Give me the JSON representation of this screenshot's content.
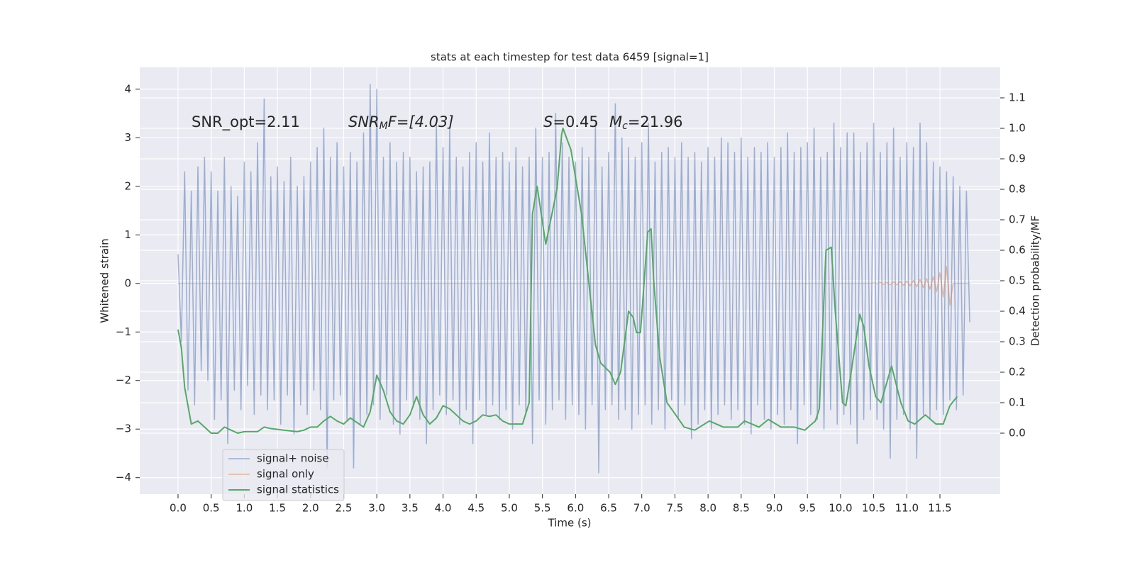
{
  "chart_data": {
    "type": "line",
    "title": "stats at each timestep for test data 6459 [signal=1]",
    "xlabel": "Time (s)",
    "ylabel": "Whitened strain",
    "y2label": "Detection probability/MF",
    "annotations": [
      {
        "base": "SNR_opt=2.11"
      },
      {
        "base": "SNR",
        "sub": "M",
        "rest": "F=[4.03]"
      },
      {
        "base": "S",
        "rest": "=0.45"
      },
      {
        "base": "M",
        "sub": "c",
        "rest": "=21.96"
      }
    ],
    "grid": true,
    "legend": "lower left",
    "xlim": [
      -0.578,
      12.41
    ],
    "ylim": [
      -4.34,
      4.45
    ],
    "y2lim": [
      -0.2,
      1.2
    ],
    "xticks": [
      {
        "value": 0,
        "label": "0.0"
      },
      0.5,
      {
        "value": 1,
        "label": "1.0"
      },
      1.5,
      {
        "value": 2,
        "label": "2.0"
      },
      2.5,
      {
        "value": 3,
        "label": "3.0"
      },
      3.5,
      {
        "value": 4,
        "label": "4.0"
      },
      4.5,
      {
        "value": 5,
        "label": "5.0"
      },
      5.5,
      {
        "value": 6,
        "label": "6.0"
      },
      6.5,
      {
        "value": 7,
        "label": "7.0"
      },
      7.5,
      {
        "value": 8,
        "label": "8.0"
      },
      8.5,
      {
        "value": 9,
        "label": "9.0"
      },
      9.5,
      {
        "value": 10,
        "label": "10.0"
      },
      10.5,
      {
        "value": 11,
        "label": "11.0"
      },
      11.5
    ],
    "yticks": [
      {
        "value": -4,
        "label": "−4"
      },
      {
        "value": -3,
        "label": "−3"
      },
      {
        "value": -2,
        "label": "−2"
      },
      {
        "value": -1,
        "label": "−1"
      },
      0,
      1,
      2,
      3,
      4
    ],
    "y2ticks": [
      {
        "value": 0,
        "label": "0.0"
      },
      0.1,
      0.2,
      0.3,
      0.4,
      0.5,
      0.6,
      0.7,
      0.8,
      0.9,
      {
        "value": 1,
        "label": "1.0"
      },
      1.1
    ],
    "x": [
      0,
      0.05,
      0.1,
      0.15,
      0.2,
      0.25,
      0.3,
      0.35,
      0.4,
      0.45,
      0.5,
      0.55,
      0.6,
      0.65,
      0.7,
      0.75,
      0.8,
      0.85,
      0.9,
      0.95,
      1,
      1.05,
      1.1,
      1.15,
      1.2,
      1.25,
      1.3,
      1.35,
      1.4,
      1.45,
      1.5,
      1.55,
      1.6,
      1.65,
      1.7,
      1.75,
      1.8,
      1.85,
      1.9,
      1.95,
      2,
      2.05,
      2.1,
      2.15,
      2.2,
      2.25,
      2.3,
      2.35,
      2.4,
      2.45,
      2.5,
      2.55,
      2.6,
      2.65,
      2.7,
      2.75,
      2.8,
      2.85,
      2.9,
      2.95,
      3,
      3.05,
      3.1,
      3.15,
      3.2,
      3.25,
      3.3,
      3.35,
      3.4,
      3.45,
      3.5,
      3.55,
      3.6,
      3.65,
      3.7,
      3.75,
      3.8,
      3.85,
      3.9,
      3.95,
      4,
      4.05,
      4.1,
      4.15,
      4.2,
      4.25,
      4.3,
      4.35,
      4.4,
      4.45,
      4.5,
      4.55,
      4.6,
      4.65,
      4.7,
      4.75,
      4.8,
      4.85,
      4.9,
      4.95,
      5,
      5.05,
      5.1,
      5.15,
      5.2,
      5.25,
      5.3,
      5.35,
      5.4,
      5.45,
      5.5,
      5.55,
      5.6,
      5.65,
      5.7,
      5.75,
      5.8,
      5.85,
      5.9,
      5.95,
      6,
      6.05,
      6.1,
      6.15,
      6.2,
      6.25,
      6.3,
      6.35,
      6.4,
      6.45,
      6.5,
      6.55,
      6.6,
      6.65,
      6.7,
      6.75,
      6.8,
      6.85,
      6.9,
      6.95,
      7,
      7.05,
      7.1,
      7.15,
      7.2,
      7.25,
      7.3,
      7.35,
      7.4,
      7.45,
      7.5,
      7.55,
      7.6,
      7.65,
      7.7,
      7.75,
      7.8,
      7.85,
      7.9,
      7.95,
      8,
      8.05,
      8.1,
      8.15,
      8.2,
      8.25,
      8.3,
      8.35,
      8.4,
      8.45,
      8.5,
      8.55,
      8.6,
      8.65,
      8.7,
      8.75,
      8.8,
      8.85,
      8.9,
      8.95,
      9,
      9.05,
      9.1,
      9.15,
      9.2,
      9.25,
      9.3,
      9.35,
      9.4,
      9.45,
      9.5,
      9.55,
      9.6,
      9.65,
      9.7,
      9.75,
      9.8,
      9.85,
      9.9,
      9.95,
      10,
      10.05,
      10.1,
      10.15,
      10.2,
      10.25,
      10.3,
      10.35,
      10.4,
      10.45,
      10.5,
      10.55,
      10.6,
      10.65,
      10.7,
      10.75,
      10.8,
      10.85,
      10.9,
      10.95,
      11,
      11.05,
      11.1,
      11.15,
      11.2,
      11.25,
      11.3,
      11.35,
      11.4,
      11.45,
      11.5,
      11.55,
      11.6,
      11.65,
      11.7,
      11.75,
      11.8,
      11.85,
      11.9,
      11.95
    ],
    "series": [
      {
        "name": "signal+ noise",
        "color": "#4c72b0",
        "values": [
          0.6,
          -1.2,
          2.3,
          -2.2,
          1.9,
          -2.5,
          2.4,
          -1.8,
          2.6,
          -2.0,
          2.3,
          -2.8,
          1.9,
          -2.4,
          2.6,
          -3.3,
          2.0,
          -2.2,
          1.8,
          -2.6,
          2.5,
          -2.1,
          2.3,
          -2.7,
          2.9,
          -2.3,
          3.8,
          -2.6,
          2.2,
          -2.4,
          2.4,
          -2.9,
          2.1,
          -2.3,
          2.6,
          -3.1,
          2.0,
          -2.5,
          2.2,
          -2.7,
          2.5,
          -2.2,
          2.8,
          -2.6,
          3.2,
          -3.8,
          2.6,
          -2.4,
          2.9,
          -2.3,
          2.4,
          -2.8,
          2.7,
          -3.8,
          2.5,
          -2.9,
          3.1,
          -2.7,
          4.1,
          -2.5,
          4.0,
          -2.8,
          2.6,
          -2.3,
          2.9,
          -2.9,
          2.5,
          -3.1,
          2.7,
          -2.4,
          2.6,
          -2.5,
          2.3,
          -2.8,
          2.4,
          -3.3,
          2.5,
          -2.6,
          3.3,
          -2.3,
          2.8,
          -2.7,
          3.2,
          -2.4,
          2.6,
          -2.9,
          2.4,
          -2.6,
          2.7,
          -3.3,
          2.9,
          -2.4,
          2.5,
          -2.7,
          3.1,
          -2.5,
          2.6,
          -2.8,
          2.7,
          -2.6,
          2.5,
          -3.0,
          2.8,
          -2.5,
          2.4,
          -2.7,
          2.6,
          -3.3,
          3.2,
          -2.4,
          2.6,
          -2.9,
          2.7,
          -2.6,
          3.5,
          -2.4,
          2.9,
          -2.8,
          2.6,
          -2.5,
          2.5,
          -2.7,
          2.8,
          -3.0,
          2.6,
          -2.5,
          3.3,
          -3.9,
          2.4,
          -2.6,
          2.7,
          -2.5,
          3.7,
          -2.8,
          3.0,
          -2.6,
          2.8,
          -3.0,
          2.6,
          -2.7,
          2.9,
          -2.5,
          3.3,
          -2.9,
          2.5,
          -2.6,
          2.7,
          -3.0,
          2.8,
          -2.4,
          2.6,
          -2.8,
          2.9,
          -2.5,
          2.6,
          -3.2,
          2.7,
          -2.9,
          2.5,
          -2.6,
          2.8,
          -3.0,
          2.6,
          -2.7,
          3.0,
          -2.5,
          2.9,
          -2.8,
          2.7,
          -2.6,
          3.0,
          -2.9,
          2.6,
          -3.1,
          2.8,
          -2.5,
          2.7,
          -2.8,
          2.9,
          -3.0,
          2.6,
          -2.7,
          2.8,
          -2.9,
          3.1,
          -2.6,
          2.7,
          -3.3,
          2.8,
          -2.5,
          2.9,
          -2.7,
          3.2,
          -2.8,
          2.6,
          -3.0,
          2.7,
          -2.6,
          3.3,
          -2.9,
          2.8,
          -2.7,
          3.1,
          -2.9,
          3.1,
          -3.3,
          2.7,
          -2.8,
          2.9,
          -2.6,
          3.3,
          -2.8,
          2.7,
          -3.0,
          2.9,
          -3.6,
          3.2,
          -2.8,
          2.6,
          -2.7,
          2.9,
          -3.0,
          2.8,
          -3.6,
          3.3,
          -2.7,
          2.9,
          -2.8,
          2.5,
          -2.6,
          2.4,
          -2.7,
          2.3,
          -2.4,
          2.2,
          -2.6,
          2.0,
          -2.3,
          1.9,
          -0.8
        ]
      },
      {
        "name": "signal only",
        "color": "#dd8452",
        "values": [
          0,
          0,
          0,
          0,
          0,
          0,
          0,
          0,
          0,
          0,
          0,
          0,
          0,
          0,
          0,
          0,
          0,
          0,
          0,
          0,
          0,
          0,
          0,
          0,
          0,
          0,
          0,
          0,
          0,
          0,
          0,
          0,
          0,
          0,
          0,
          0,
          0,
          0,
          0,
          0,
          0,
          0,
          0,
          0,
          0,
          0,
          0,
          0,
          0,
          0,
          0,
          0,
          0,
          0,
          0,
          0,
          0,
          0,
          0,
          0,
          0,
          0,
          0,
          0,
          0,
          0,
          0,
          0,
          0,
          0,
          0,
          0,
          0,
          0,
          0,
          0,
          0,
          0,
          0,
          0,
          0,
          0,
          0,
          0,
          0,
          0,
          0,
          0,
          0,
          0,
          0,
          0,
          0,
          0,
          0,
          0,
          0,
          0,
          0,
          0,
          0,
          0,
          0,
          0,
          0,
          0,
          0,
          0,
          0,
          0,
          0,
          0,
          0,
          0,
          0,
          0,
          0,
          0,
          0,
          0,
          0,
          0,
          0,
          0,
          0,
          0,
          0,
          0,
          0,
          0,
          0,
          0,
          0,
          0,
          0,
          0,
          0,
          0,
          0,
          0,
          0,
          0,
          0,
          0,
          0,
          0,
          0,
          0,
          0,
          0,
          0,
          0,
          0,
          0,
          0,
          0,
          0,
          0,
          0,
          0,
          0,
          0,
          0,
          0,
          0,
          0,
          0,
          0,
          0,
          0,
          0,
          0,
          0,
          0,
          0,
          0,
          0,
          0,
          0,
          0,
          0,
          0,
          0,
          0,
          0,
          0,
          0,
          0,
          0,
          0,
          0,
          0,
          0,
          0,
          0,
          0,
          0,
          0,
          0,
          0,
          0,
          0,
          0,
          0,
          0,
          0,
          0,
          0,
          0,
          0,
          0.01,
          -0.01,
          0.02,
          -0.02,
          0.02,
          -0.03,
          0.03,
          -0.03,
          0.04,
          -0.04,
          0.05,
          -0.05,
          0.06,
          -0.07,
          0.08,
          -0.09,
          0.1,
          -0.12,
          0.14,
          -0.17,
          0.22,
          -0.28,
          0.35,
          -0.45,
          0,
          0,
          0,
          0,
          0,
          0
        ]
      },
      {
        "name": "signal statistics",
        "color": "#55a868",
        "axis": "y2",
        "x": [
          0,
          0.05,
          0.1,
          0.2,
          0.3,
          0.4,
          0.5,
          0.6,
          0.7,
          0.8,
          0.9,
          1,
          1.2,
          1.3,
          1.4,
          1.6,
          1.8,
          1.9,
          2,
          2.1,
          2.2,
          2.3,
          2.4,
          2.5,
          2.6,
          2.7,
          2.8,
          2.9,
          3,
          3.1,
          3.2,
          3.3,
          3.4,
          3.5,
          3.6,
          3.7,
          3.8,
          3.9,
          4,
          4.1,
          4.2,
          4.3,
          4.4,
          4.5,
          4.6,
          4.7,
          4.8,
          4.9,
          5,
          5.1,
          5.2,
          5.3,
          5.35,
          5.42,
          5.55,
          5.72,
          5.79,
          5.81,
          5.93,
          6.09,
          6.3,
          6.38,
          6.52,
          6.6,
          6.68,
          6.8,
          6.87,
          6.92,
          6.98,
          7.09,
          7.14,
          7.18,
          7.27,
          7.38,
          7.48,
          7.64,
          7.8,
          8.02,
          8.23,
          8.45,
          8.55,
          8.66,
          8.77,
          8.91,
          9.1,
          9.3,
          9.46,
          9.62,
          9.68,
          9.78,
          9.86,
          9.92,
          10.03,
          10.08,
          10.16,
          10.29,
          10.35,
          10.43,
          10.53,
          10.61,
          10.77,
          10.91,
          11.02,
          11.12,
          11.28,
          11.44,
          11.55,
          11.65,
          11.76
        ],
        "values": [
          0.34,
          0.28,
          0.15,
          0.03,
          0.04,
          0.02,
          0,
          0,
          0.02,
          0.01,
          0,
          0.005,
          0.005,
          0.02,
          0.015,
          0.01,
          0.005,
          0.01,
          0.02,
          0.02,
          0.04,
          0.055,
          0.04,
          0.03,
          0.05,
          0.035,
          0.02,
          0.07,
          0.19,
          0.14,
          0.07,
          0.04,
          0.03,
          0.06,
          0.12,
          0.06,
          0.03,
          0.05,
          0.09,
          0.08,
          0.06,
          0.04,
          0.03,
          0.04,
          0.06,
          0.055,
          0.06,
          0.04,
          0.03,
          0.03,
          0.03,
          0.1,
          0.72,
          0.81,
          0.62,
          0.8,
          0.98,
          1,
          0.93,
          0.72,
          0.29,
          0.23,
          0.2,
          0.16,
          0.2,
          0.4,
          0.38,
          0.33,
          0.33,
          0.66,
          0.67,
          0.5,
          0.25,
          0.1,
          0.07,
          0.02,
          0.01,
          0.04,
          0.02,
          0.02,
          0.04,
          0.03,
          0.02,
          0.045,
          0.02,
          0.02,
          0.01,
          0.04,
          0.08,
          0.6,
          0.61,
          0.4,
          0.1,
          0.09,
          0.2,
          0.39,
          0.35,
          0.22,
          0.12,
          0.1,
          0.22,
          0.1,
          0.04,
          0.03,
          0.06,
          0.03,
          0.03,
          0.09,
          0.12
        ]
      }
    ]
  }
}
